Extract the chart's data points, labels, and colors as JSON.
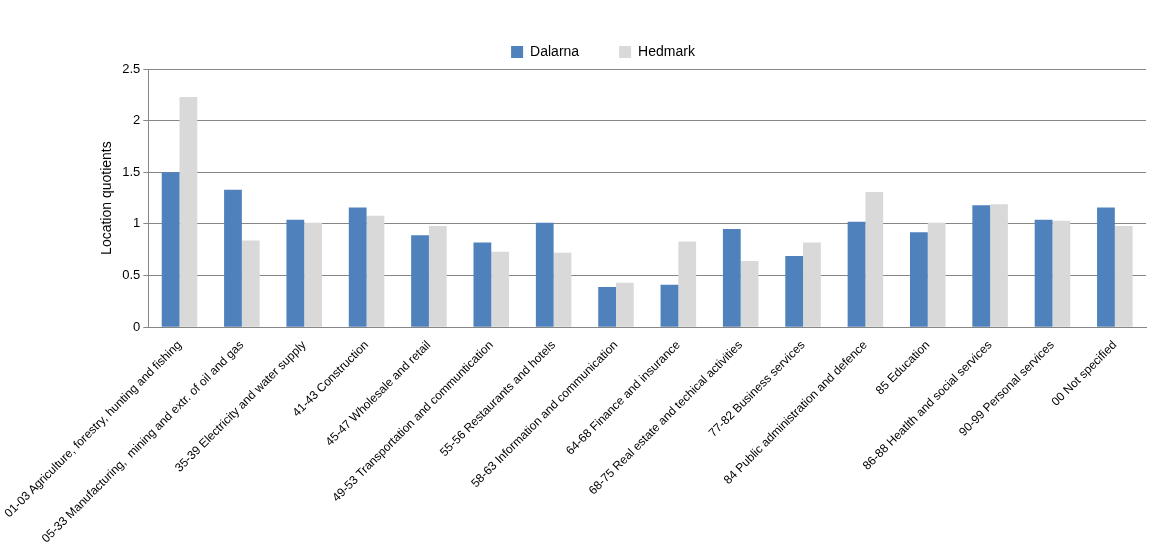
{
  "chart_data": {
    "type": "bar",
    "ylabel": "Location quotients",
    "categories": [
      "01-03 Agriculture, forestry, hunting and fishing",
      "05-33 Manufacturing,  mining and extr. of oil and gas",
      "35-39 Electricity and water supply",
      "41-43 Construction",
      "45-47 Wholesale and retail",
      "49-53 Transportation and communtication",
      "55-56 Restaurants and hotels",
      "58-63 Information and communication",
      "64-68 Finance and insurance",
      "68-75 Real estate and techical activities",
      "77-82 Business services",
      "84 Public administration and defence",
      "85 Education",
      "86-88 Heatlth and social services",
      "90-99 Personal services",
      "00 Not specified"
    ],
    "series": [
      {
        "name": "Dalarna",
        "color": "#4f81bd",
        "values": [
          1.5,
          1.33,
          1.04,
          1.16,
          0.89,
          0.82,
          1.01,
          0.39,
          0.41,
          0.95,
          0.69,
          1.02,
          0.92,
          1.18,
          1.04,
          1.16
        ]
      },
      {
        "name": "Hedmark",
        "color": "#d9d9d9",
        "values": [
          2.23,
          0.84,
          1.01,
          1.08,
          0.98,
          0.73,
          0.72,
          0.43,
          0.83,
          0.64,
          0.82,
          1.31,
          1.01,
          1.19,
          1.03,
          0.98
        ]
      }
    ],
    "ylim": [
      0,
      2.5
    ],
    "yticks": [
      0,
      0.5,
      1,
      1.5,
      2,
      2.5
    ],
    "grid": "y",
    "legend": "top"
  }
}
